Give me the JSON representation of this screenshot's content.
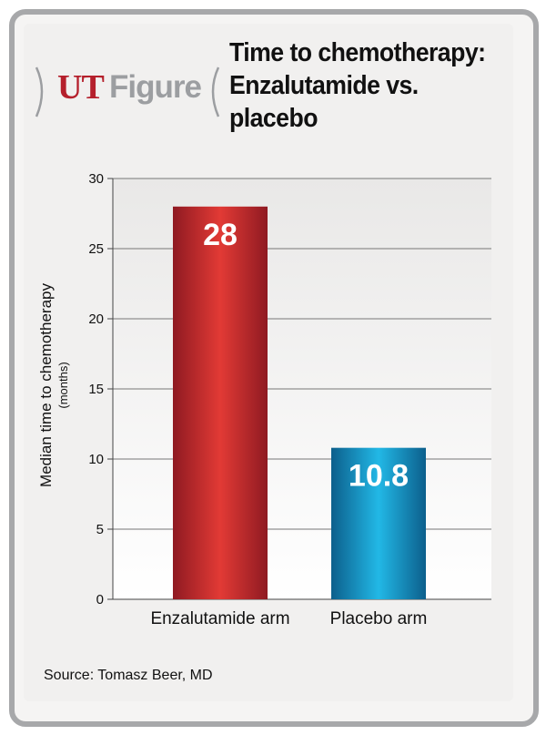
{
  "logo": {
    "ut": "UT",
    "figure": "Figure"
  },
  "header": {
    "title": "Time to chemotherapy: Enzalutamide vs. placebo"
  },
  "source": "Source: Tomasz Beer, MD",
  "chart_data": {
    "type": "bar",
    "categories": [
      "Enzalutamide arm",
      "Placebo arm"
    ],
    "values": [
      28,
      10.8
    ],
    "data_labels": [
      "28",
      "10.8"
    ],
    "ylabel": "Median time to chemotherapy",
    "ylabel_sub": "(months)",
    "ylim": [
      0,
      30
    ],
    "yticks": [
      0,
      5,
      10,
      15,
      20,
      25,
      30
    ],
    "grid": true,
    "colors": {
      "Enzalutamide arm": "#c3262d",
      "Placebo arm": "#1a8fc4"
    }
  }
}
